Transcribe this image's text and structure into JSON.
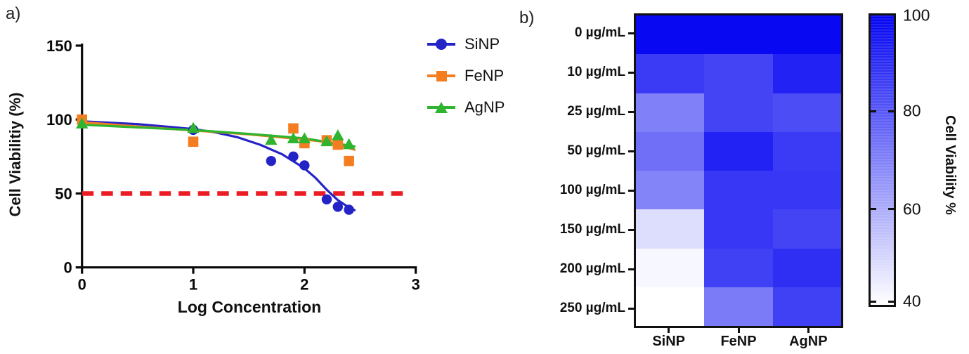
{
  "panel_a": {
    "label": "a)"
  },
  "panel_b": {
    "label": "b)"
  },
  "chart_data": [
    {
      "id": "dose_response",
      "type": "scatter",
      "title": "",
      "xlabel": "Log Concentration",
      "ylabel": "Cell Viabilitiy (%)",
      "xlim": [
        0,
        3
      ],
      "ylim": [
        0,
        150
      ],
      "xticks": [
        0,
        1,
        2,
        3
      ],
      "yticks": [
        0,
        50,
        100,
        150
      ],
      "grid": false,
      "legend_position": "right-top",
      "reference_line": {
        "y": 50,
        "color": "#EC1C24",
        "style": "dashed",
        "x_extent": [
          0,
          2.9
        ]
      },
      "series": [
        {
          "name": "SiNP",
          "color": "#2323C6",
          "marker": "circle",
          "points": [
            [
              0,
              99
            ],
            [
              1,
              93
            ],
            [
              1.7,
              72
            ],
            [
              1.9,
              75
            ],
            [
              2,
              69
            ],
            [
              2.2,
              46
            ],
            [
              2.3,
              41
            ],
            [
              2.4,
              39
            ]
          ],
          "fit_curve": [
            [
              0,
              98.8
            ],
            [
              0.5,
              96.9
            ],
            [
              1,
              93.6
            ],
            [
              1.2,
              91.3
            ],
            [
              1.4,
              88
            ],
            [
              1.6,
              83
            ],
            [
              1.8,
              76.5
            ],
            [
              2,
              67
            ],
            [
              2.1,
              60.5
            ],
            [
              2.2,
              52.5
            ],
            [
              2.3,
              45.5
            ],
            [
              2.4,
              40.5
            ],
            [
              2.45,
              38.7
            ]
          ]
        },
        {
          "name": "FeNP",
          "color": "#F47D21",
          "marker": "square",
          "points": [
            [
              0,
              100
            ],
            [
              1,
              85
            ],
            [
              1.9,
              94
            ],
            [
              2,
              84
            ],
            [
              2.2,
              86
            ],
            [
              2.3,
              83
            ],
            [
              2.4,
              72
            ]
          ],
          "fit_curve": [
            [
              0,
              98.2
            ],
            [
              0.5,
              95.3
            ],
            [
              1,
              92.6
            ],
            [
              1.5,
              90
            ],
            [
              2,
              86.5
            ],
            [
              2.2,
              84.8
            ],
            [
              2.45,
              79.6
            ]
          ]
        },
        {
          "name": "AgNP",
          "color": "#2EB42E",
          "marker": "triangle",
          "points": [
            [
              0,
              97
            ],
            [
              1,
              94
            ],
            [
              1.7,
              86
            ],
            [
              1.9,
              87
            ],
            [
              2,
              87
            ],
            [
              2.2,
              85
            ],
            [
              2.3,
              89
            ],
            [
              2.4,
              83
            ]
          ],
          "fit_curve": [
            [
              0,
              96.5
            ],
            [
              0.5,
              94.7
            ],
            [
              1,
              92.9
            ],
            [
              1.5,
              90.3
            ],
            [
              2,
              87.3
            ],
            [
              2.45,
              81.8
            ]
          ]
        }
      ]
    },
    {
      "id": "viability_heatmap",
      "type": "heatmap",
      "rows": [
        "0 µg/mL",
        "10 µg/mL",
        "25 µg/mL",
        "50 µg/mL",
        "100 µg/mL",
        "150 µg/mL",
        "200 µg/mL",
        "250 µg/mL"
      ],
      "columns": [
        "SiNP",
        "FeNP",
        "AgNP"
      ],
      "values": [
        [
          98,
          98,
          98
        ],
        [
          86,
          84,
          92
        ],
        [
          70,
          84,
          82
        ],
        [
          74,
          92,
          86
        ],
        [
          69,
          87,
          87
        ],
        [
          48,
          87,
          84
        ],
        [
          42,
          85,
          89
        ],
        [
          40,
          71,
          85
        ]
      ],
      "colorbar": {
        "label": "Cell Viability %",
        "ticks": [
          100,
          80,
          60,
          40
        ],
        "range": [
          40,
          100
        ],
        "color_high": "#0202F2",
        "color_low": "#FFFFFF"
      }
    }
  ]
}
